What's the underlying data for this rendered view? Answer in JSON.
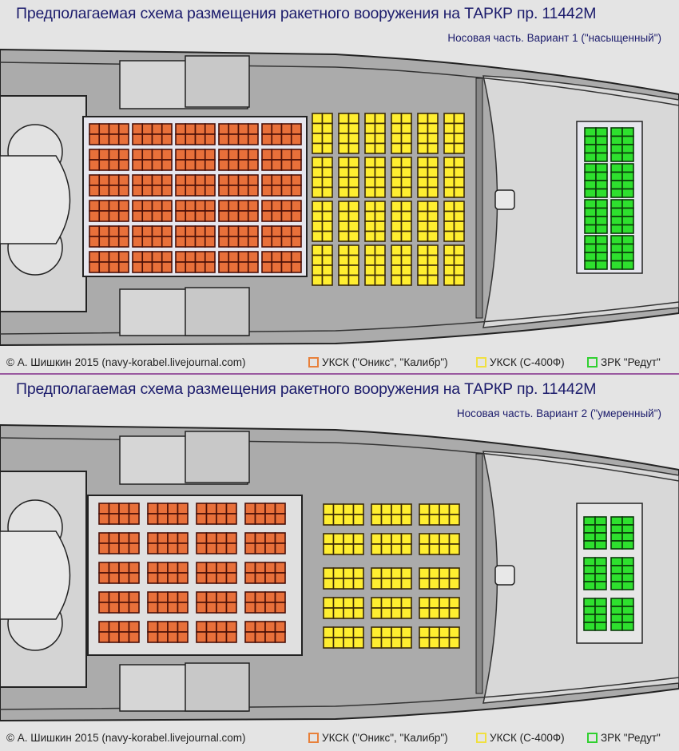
{
  "variants": [
    {
      "title": "Предполагаемая схема размещения ракетного вооружения на ТАРКР пр. 11442М",
      "subtitle": "Носовая часть. Вариант 1 (\"насыщенный\")",
      "launchers": {
        "oniks_kalibr": {
          "cols": 5,
          "rows": 6,
          "cells_wide": 4,
          "cells_high": 2
        },
        "s400f": {
          "cols": 6,
          "rows": 4,
          "cells_wide": 2,
          "cells_high": 4
        },
        "redut": {
          "cols": 2,
          "rows": 4,
          "cells_wide": 2,
          "cells_high": 4
        }
      }
    },
    {
      "title": "Предполагаемая схема размещения ракетного вооружения на ТАРКР пр. 11442М",
      "subtitle": "Носовая часть. Вариант 2 (\"умеренный\")",
      "launchers": {
        "oniks_kalibr": {
          "cols": 4,
          "rows": 5,
          "cells_wide": 4,
          "cells_high": 2
        },
        "s400f": {
          "cols": 3,
          "rows": 5,
          "cells_wide": 4,
          "cells_high": 2
        },
        "redut": {
          "cols": 2,
          "rows": 3,
          "cells_wide": 2,
          "cells_high": 4
        }
      }
    }
  ],
  "footer": {
    "copyright": "© А. Шишкин 2015 (navy-korabel.livejournal.com)",
    "legend": [
      {
        "label": "УКСК (\"Оникс\", \"Калибр\")",
        "color": "#e8703a"
      },
      {
        "label": "УКСК (С-400Ф)",
        "color": "#ffee30"
      },
      {
        "label": "ЗРК \"Редут\"",
        "color": "#2ee02e"
      }
    ]
  },
  "colors": {
    "title": "#1c1c6c",
    "divider": "#9a5aa0",
    "cell_outline": "#4a1008"
  }
}
